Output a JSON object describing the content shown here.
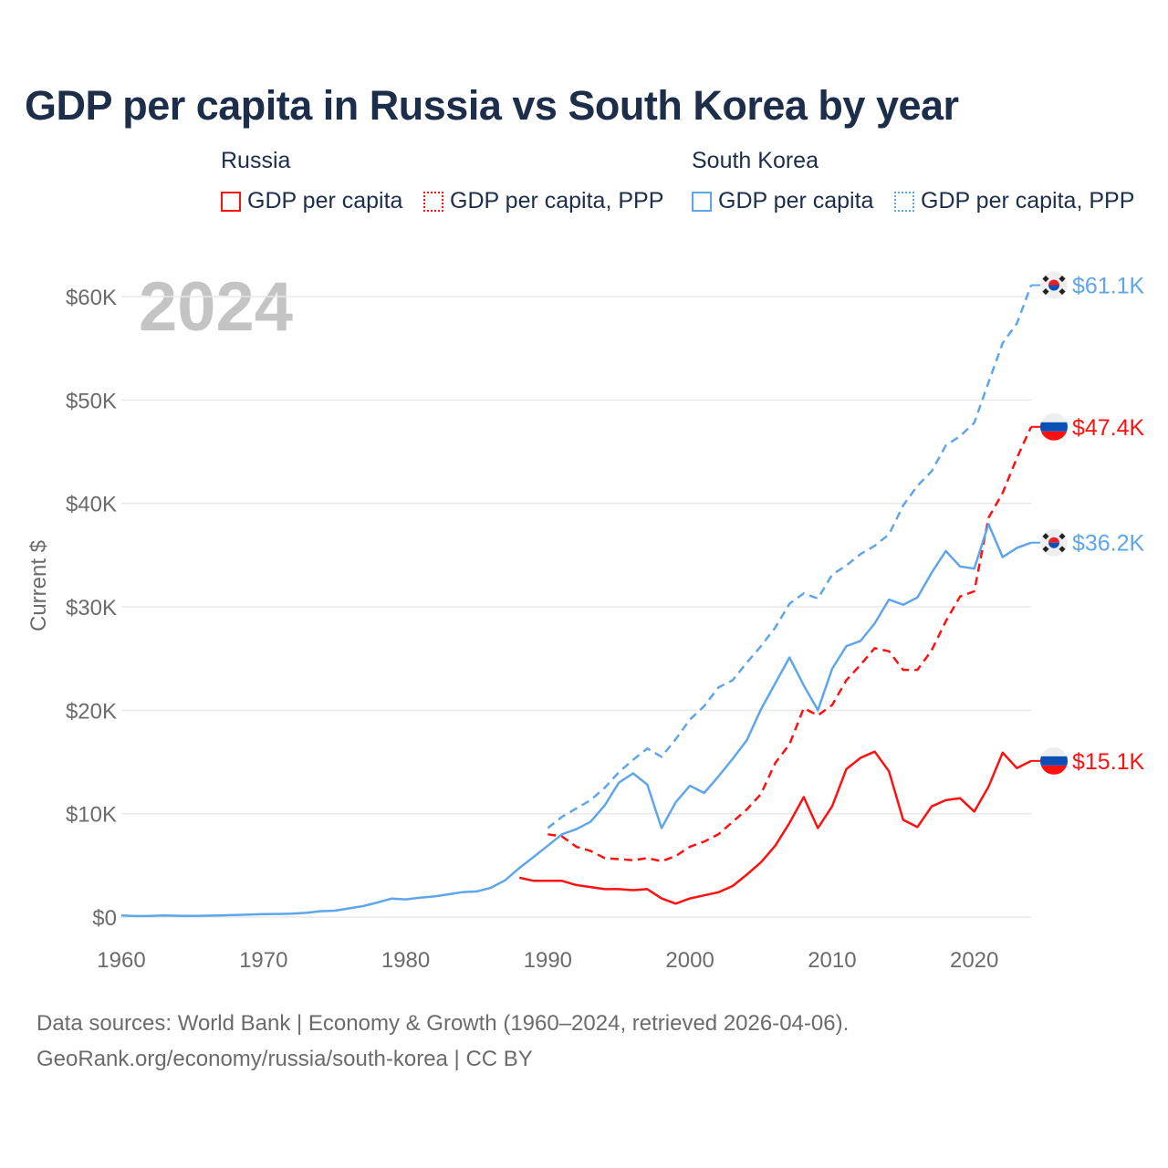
{
  "title": "GDP per capita in Russia vs South Korea by year",
  "legend": {
    "groups": [
      {
        "name": "Russia",
        "items": [
          "GDP per capita",
          "GDP per capita, PPP"
        ]
      },
      {
        "name": "South Korea",
        "items": [
          "GDP per capita",
          "GDP per capita, PPP"
        ]
      }
    ]
  },
  "colors": {
    "russia": "#ff1010",
    "korea": "#5ea6ec",
    "grid": "#e8e8e8",
    "axis_text": "#6b6b6b",
    "title": "#1c2e4a"
  },
  "footer": {
    "line1": "Data sources: World Bank | Economy & Growth (1960–2024, retrieved 2026-04-06).",
    "line2": "GeoRank.org/economy/russia/south-korea | CC BY"
  },
  "chart_data": {
    "type": "line",
    "title": "GDP per capita in Russia vs South Korea by year",
    "ylabel": "Current $",
    "xlabel": "",
    "year_watermark": "2024",
    "xlim": [
      1960,
      2024
    ],
    "ylim": [
      0,
      60000
    ],
    "x_ticks": [
      1960,
      1970,
      1980,
      1990,
      2000,
      2010,
      2020
    ],
    "x_tick_labels": [
      "1960",
      "1970",
      "1980",
      "1990",
      "2000",
      "2010",
      "2020"
    ],
    "y_ticks": [
      0,
      10000,
      20000,
      30000,
      40000,
      50000,
      60000
    ],
    "y_tick_labels": [
      "$0",
      "$10K",
      "$20K",
      "$30K",
      "$40K",
      "$50K",
      "$60K"
    ],
    "grid": true,
    "legend_position": "top",
    "series": [
      {
        "name": "South Korea GDP per capita, PPP",
        "country": "korea",
        "dash": true,
        "end_label": "$61.1K",
        "start": 1990,
        "values": [
          8600,
          9700,
          10500,
          11300,
          12500,
          14000,
          15200,
          16300,
          15500,
          17200,
          19100,
          20400,
          22200,
          22900,
          24600,
          26200,
          28000,
          30300,
          31300,
          30800,
          33100,
          34000,
          35100,
          35900,
          37000,
          39800,
          41700,
          43100,
          45600,
          46500,
          47800,
          51700,
          55500,
          57400,
          61100
        ]
      },
      {
        "name": "Russia GDP per capita, PPP",
        "country": "russia",
        "dash": true,
        "end_label": "$47.4K",
        "start": 1990,
        "values": [
          8000,
          7800,
          6800,
          6400,
          5700,
          5600,
          5500,
          5700,
          5400,
          5900,
          6800,
          7300,
          8000,
          9200,
          10400,
          11900,
          14900,
          16700,
          20200,
          19500,
          20500,
          22900,
          24400,
          26000,
          25700,
          23900,
          23900,
          25800,
          28600,
          31000,
          31500,
          38600,
          41000,
          44400,
          47400
        ]
      },
      {
        "name": "South Korea GDP per capita",
        "country": "korea",
        "dash": false,
        "end_label": "$36.2K",
        "start": 1960,
        "values": [
          158,
          94,
          106,
          146,
          124,
          109,
          133,
          161,
          199,
          243,
          279,
          301,
          324,
          406,
          563,
          617,
          834,
          1056,
          1406,
          1784,
          1715,
          1883,
          1993,
          2199,
          2413,
          2482,
          2835,
          3555,
          4749,
          5817,
          6900,
          8000,
          8500,
          9200,
          10800,
          13000,
          13900,
          12800,
          8600,
          11100,
          12700,
          12000,
          13600,
          15300,
          17100,
          20100,
          22600,
          25100,
          22400,
          20000,
          24000,
          26200,
          26700,
          28400,
          30700,
          30200,
          30900,
          33300,
          35400,
          33900,
          33700,
          38000,
          34800,
          35700,
          36200
        ]
      },
      {
        "name": "Russia GDP per capita",
        "country": "russia",
        "dash": false,
        "end_label": "$15.1K",
        "start": 1988,
        "values": [
          3800,
          3500,
          3500,
          3500,
          3100,
          2900,
          2700,
          2700,
          2600,
          2700,
          1800,
          1300,
          1800,
          2100,
          2400,
          3000,
          4100,
          5300,
          6900,
          9100,
          11600,
          8600,
          10700,
          14300,
          15400,
          16000,
          14100,
          9400,
          8700,
          10700,
          11300,
          11500,
          10200,
          12600,
          15900,
          14400,
          15100
        ]
      }
    ]
  }
}
